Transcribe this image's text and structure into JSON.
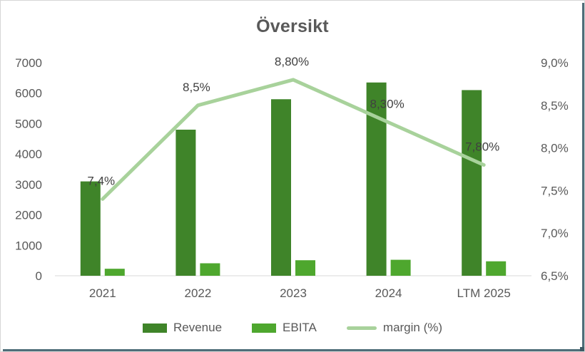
{
  "chart_data": {
    "type": "combo",
    "title": "Översikt",
    "categories": [
      "2021",
      "2022",
      "2023",
      "2024",
      "LTM 2025"
    ],
    "series": [
      {
        "name": "Revenue",
        "type": "bar",
        "axis": "left",
        "color": "#3F8429",
        "values": [
          3100,
          4800,
          5800,
          6350,
          6100
        ]
      },
      {
        "name": "EBITA",
        "type": "bar",
        "axis": "left",
        "color": "#4EA72E",
        "values": [
          230,
          410,
          510,
          525,
          475
        ]
      },
      {
        "name": "margin (%)",
        "type": "line",
        "axis": "right",
        "color": "#A8D29B",
        "values": [
          7.4,
          8.5,
          8.8,
          8.3,
          7.8
        ],
        "data_labels": [
          "7,4%",
          "8,5%",
          "8,80%",
          "8,30%",
          "7,80%"
        ]
      }
    ],
    "left_axis": {
      "min": 0,
      "max": 7000,
      "step": 1000,
      "tick_labels": [
        "0",
        "1000",
        "2000",
        "3000",
        "4000",
        "5000",
        "6000",
        "7000"
      ]
    },
    "right_axis": {
      "min": 6.5,
      "max": 9.0,
      "step": 0.5,
      "tick_labels": [
        "6,5%",
        "7,0%",
        "7,5%",
        "8,0%",
        "8,5%",
        "9,0%"
      ]
    },
    "legend_position": "bottom",
    "grid": false,
    "colors": {
      "axis_text": "#595959",
      "data_label_text": "#404040",
      "title_text": "#595959",
      "axis_line": "#d9d9d9"
    }
  }
}
